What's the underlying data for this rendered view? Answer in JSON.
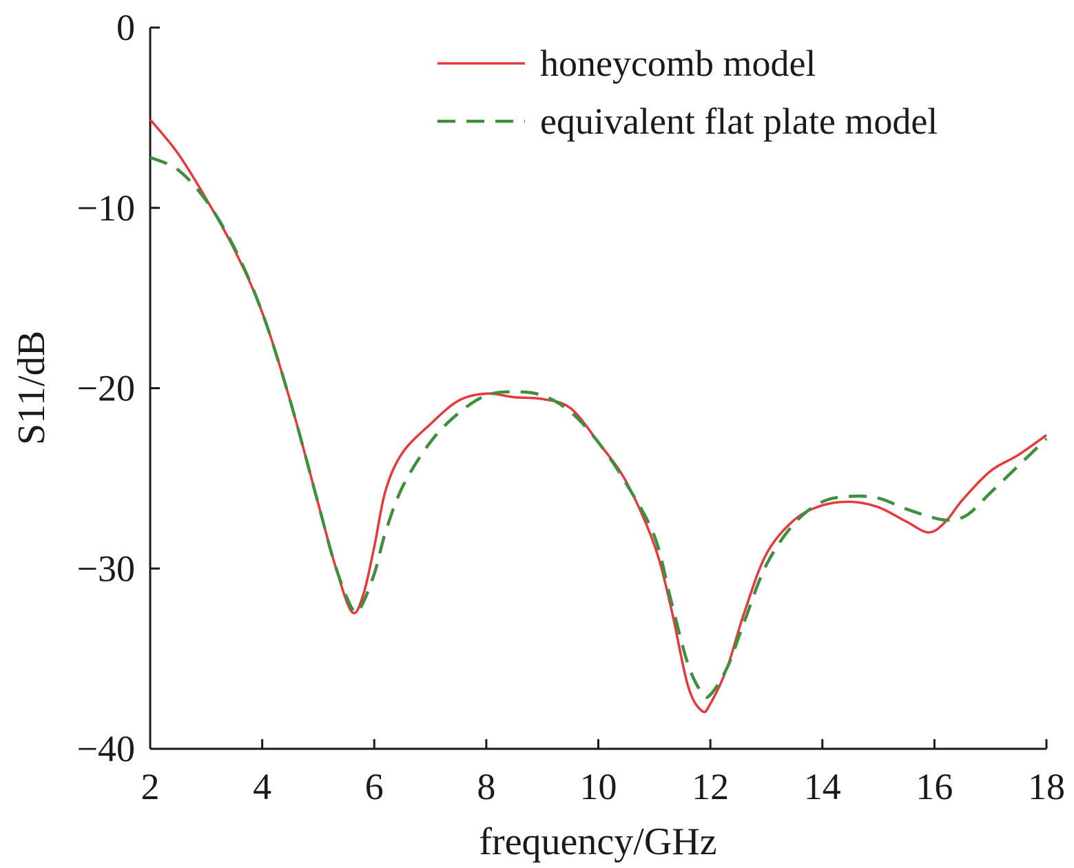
{
  "chart_data": {
    "type": "line",
    "title": "",
    "xlabel": "frequency/GHz",
    "ylabel": "S11/dB",
    "xlim": [
      2,
      18
    ],
    "ylim": [
      -40,
      0
    ],
    "xticks": [
      2,
      4,
      6,
      8,
      10,
      12,
      14,
      16,
      18
    ],
    "yticks": [
      0,
      -10,
      -20,
      -30,
      -40
    ],
    "xtick_labels": [
      "2",
      "4",
      "6",
      "8",
      "10",
      "12",
      "14",
      "16",
      "18"
    ],
    "ytick_labels": [
      "0",
      "−10",
      "−20",
      "−30",
      "−40"
    ],
    "grid": false,
    "legend_position": "top-right",
    "series": [
      {
        "name": "honeycomb model",
        "color": "#e8383d",
        "dash": "solid",
        "x": [
          2,
          2.5,
          3,
          3.5,
          4,
          4.5,
          5,
          5.3,
          5.6,
          5.8,
          6,
          6.2,
          6.5,
          7,
          7.5,
          8,
          8.5,
          9,
          9.5,
          10,
          10.5,
          11,
          11.3,
          11.6,
          11.85,
          12,
          12.3,
          12.6,
          13,
          13.5,
          14,
          14.5,
          15,
          15.5,
          15.9,
          16.2,
          16.5,
          17,
          17.5,
          18
        ],
        "y": [
          -5.1,
          -7,
          -9.5,
          -12.3,
          -15.8,
          -20.7,
          -26.4,
          -29.8,
          -32.4,
          -31.5,
          -28.8,
          -25.7,
          -23.6,
          -22,
          -20.7,
          -20.3,
          -20.5,
          -20.6,
          -21.1,
          -23,
          -25.2,
          -28.7,
          -32.2,
          -36.5,
          -37.9,
          -37.5,
          -35.5,
          -32.5,
          -29.2,
          -27.3,
          -26.5,
          -26.3,
          -26.6,
          -27.4,
          -28,
          -27.4,
          -26.2,
          -24.6,
          -23.7,
          -22.6
        ]
      },
      {
        "name": "equivalent flat plate model",
        "color": "#3e8f3e",
        "dash": "dashed",
        "x": [
          2,
          2.5,
          3,
          3.5,
          4,
          4.5,
          5,
          5.3,
          5.6,
          5.75,
          6,
          6.2,
          6.5,
          7,
          7.5,
          8,
          8.5,
          9,
          9.5,
          10,
          10.5,
          11,
          11.3,
          11.6,
          11.85,
          12,
          12.3,
          12.6,
          13,
          13.5,
          14,
          14.5,
          15,
          15.5,
          16,
          16.3,
          16.6,
          17,
          17.5,
          18
        ],
        "y": [
          -7.2,
          -7.9,
          -9.6,
          -12.2,
          -15.8,
          -20.7,
          -26.4,
          -29.8,
          -32.2,
          -32.2,
          -30.3,
          -28,
          -25.5,
          -23,
          -21.4,
          -20.4,
          -20.2,
          -20.4,
          -21.3,
          -23,
          -25.3,
          -28.2,
          -31.8,
          -35.3,
          -36.9,
          -37,
          -35.5,
          -33,
          -29.8,
          -27.5,
          -26.3,
          -26,
          -26.1,
          -26.7,
          -27.2,
          -27.3,
          -27,
          -25.8,
          -24.3,
          -22.8
        ]
      }
    ]
  }
}
